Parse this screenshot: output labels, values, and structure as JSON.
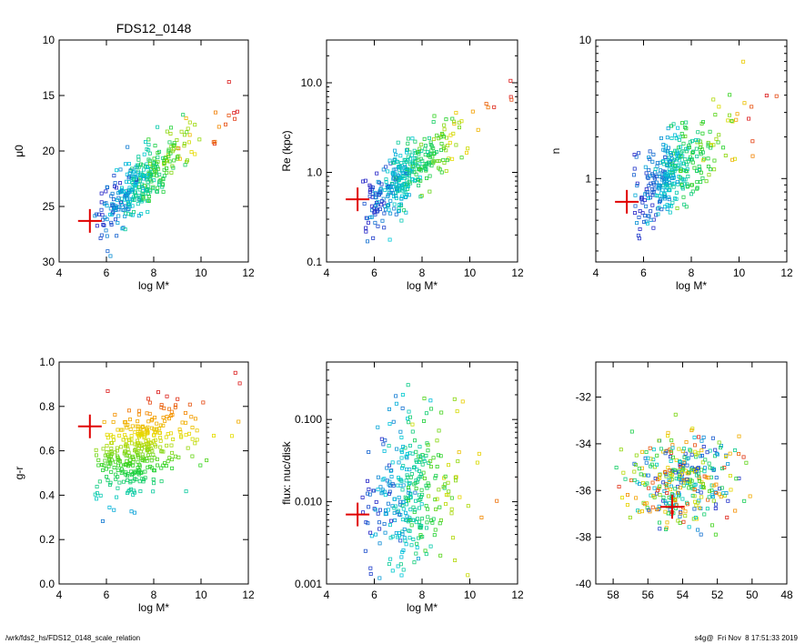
{
  "footer": {
    "path": "/wrk/fds2_hs/FDS12_0148_scale_relation",
    "stamp": "s4g@  Fri Nov  8 17:51:33 2019"
  },
  "chart_data": [
    {
      "type": "scatter",
      "title": "FDS12_0148",
      "xlabel": "log M*",
      "ylabel": "μ0",
      "xlim": [
        4,
        12
      ],
      "ylim": [
        30,
        10
      ],
      "xticks": [
        "4",
        "6",
        "8",
        "10",
        "12"
      ],
      "yticks": [
        "10",
        "15",
        "20",
        "25",
        "30"
      ],
      "marker": {
        "x": 5.3,
        "y": 26.3
      },
      "cloud": {
        "anchor": [
          6.8,
          24.2
        ],
        "slope": 1.85,
        "scatter": 1.3,
        "n": 360
      }
    },
    {
      "type": "scatter",
      "title": "",
      "xlabel": "log M*",
      "ylabel": "Re (kpc)",
      "yscale": "log",
      "xlim": [
        4,
        12
      ],
      "ylim": [
        0.1,
        30
      ],
      "xticks": [
        "4",
        "6",
        "8",
        "10",
        "12"
      ],
      "yticks": [
        "0.1",
        "1.0",
        "10.0"
      ],
      "marker": {
        "x": 5.3,
        "y": 0.5
      },
      "cloud": {
        "anchor": [
          6.8,
          0.7
        ],
        "slope": 0.21,
        "scatter": 0.17,
        "n": 360
      }
    },
    {
      "type": "scatter",
      "title": "",
      "xlabel": "log M*",
      "ylabel": "n",
      "yscale": "log",
      "xlim": [
        4,
        12
      ],
      "ylim": [
        0.25,
        10
      ],
      "xticks": [
        "4",
        "6",
        "8",
        "10",
        "12"
      ],
      "yticks": [
        "1",
        "10"
      ],
      "marker": {
        "x": 5.3,
        "y": 0.68
      },
      "cloud": {
        "anchor": [
          6.8,
          0.95
        ],
        "slope": 0.14,
        "scatter": 0.14,
        "n": 360
      }
    },
    {
      "type": "scatter",
      "title": "",
      "xlabel": "log M*",
      "ylabel": "g-r",
      "xlim": [
        4,
        12
      ],
      "ylim": [
        0.0,
        1.0
      ],
      "xticks": [
        "4",
        "6",
        "8",
        "10",
        "12"
      ],
      "yticks": [
        "0.0",
        "0.2",
        "0.4",
        "0.6",
        "0.8",
        "1.0"
      ],
      "marker": {
        "x": 5.3,
        "y": 0.71
      },
      "cloud": {
        "anchor": [
          6.8,
          0.58
        ],
        "slope": 0.045,
        "scatter": 0.09,
        "n": 360
      }
    },
    {
      "type": "scatter",
      "title": "",
      "xlabel": "log M*",
      "ylabel": "flux: nuc/disk",
      "yscale": "log",
      "xlim": [
        4,
        12
      ],
      "ylim": [
        0.001,
        0.5
      ],
      "xticks": [
        "4",
        "6",
        "8",
        "10",
        "12"
      ],
      "yticks": [
        "0.001",
        "0.010",
        "0.100"
      ],
      "marker": {
        "x": 5.3,
        "y": 0.007
      },
      "cloud": {
        "anchor": [
          7.0,
          0.012
        ],
        "slope": 0.0,
        "scatter": 0.45,
        "n": 330
      }
    },
    {
      "type": "scatter",
      "title": "",
      "xlabel": "",
      "ylabel": "",
      "xlim": [
        59,
        48
      ],
      "ylim": [
        -40,
        -30.5
      ],
      "xticks": [
        "58",
        "56",
        "54",
        "52",
        "50",
        "48"
      ],
      "yticks": [
        "-40",
        "-38",
        "-36",
        "-34",
        "-32"
      ],
      "marker": {
        "x": 54.6,
        "y": -36.7
      },
      "cloud": {
        "anchor": [
          54.0,
          -35.6
        ],
        "spreadX": 2.6,
        "spreadY": 1.3,
        "n": 360
      }
    }
  ]
}
